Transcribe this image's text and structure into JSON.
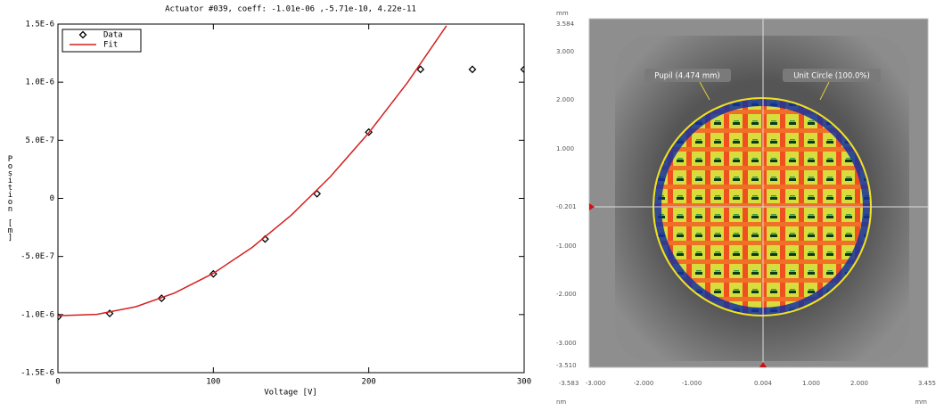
{
  "chart_data": {
    "type": "scatter",
    "title": "Actuator #039, coeff: -1.01e-06 ,-5.71e-10,  4.22e-11",
    "x_label": "Voltage [V]",
    "y_label": "Position [m]",
    "xlim": [
      0,
      300
    ],
    "xticks": [
      0,
      100,
      200,
      300
    ],
    "ylim": [
      -1.5e-06,
      1.5e-06
    ],
    "yticks": [
      {
        "value": -1.5e-06,
        "label": "-1.5E-6"
      },
      {
        "value": -1e-06,
        "label": "-1.0E-6"
      },
      {
        "value": -5e-07,
        "label": "-5.0E-7"
      },
      0,
      {
        "value": 5e-07,
        "label": "5.0E-7"
      },
      {
        "value": 1e-06,
        "label": "1.0E-6"
      },
      {
        "value": 1.5e-06,
        "label": "1.5E-6"
      }
    ],
    "legend": "upper-left",
    "series": [
      {
        "name": "Data",
        "color": "#000000",
        "mode": "markers",
        "x": [
          0,
          33.3,
          66.7,
          100,
          133.3,
          166.7,
          200,
          233.3,
          266.7,
          300
        ],
        "values": [
          -1.02e-06,
          -9.9e-07,
          -8.6e-07,
          -6.5e-07,
          -3.5e-07,
          4e-08,
          5.7e-07,
          1.11e-06,
          1.11e-06,
          1.11e-06
        ]
      },
      {
        "name": "Fit",
        "color": "#d42020",
        "mode": "line",
        "x": [
          0,
          25,
          50,
          75,
          100,
          125,
          150,
          175,
          200,
          225,
          250
        ],
        "values": [
          -1.01e-06,
          -9.98e-07,
          -9.33e-07,
          -8.15e-07,
          -6.45e-07,
          -4.22e-07,
          -1.46e-07,
          1.82e-07,
          5.64e-07,
          9.98e-07,
          1.485e-06
        ]
      }
    ]
  },
  "map": {
    "y_unit": "mm",
    "x_unit_left": "nm",
    "x_unit_right": "mm",
    "y_ticks": [
      "3.584",
      "3.000",
      "2.000",
      "1.000",
      "-0.201",
      "-1.000",
      "-2.000",
      "-3.000",
      "-3.510"
    ],
    "x_ticks": [
      "-3.583",
      "-3.000",
      "-2.000",
      "-1.000",
      "0.004",
      "1.000",
      "2.000",
      "3.455"
    ],
    "pupil_label": "Pupil (4.474 mm)",
    "circle_label": "Unit Circle (100.0%)"
  }
}
